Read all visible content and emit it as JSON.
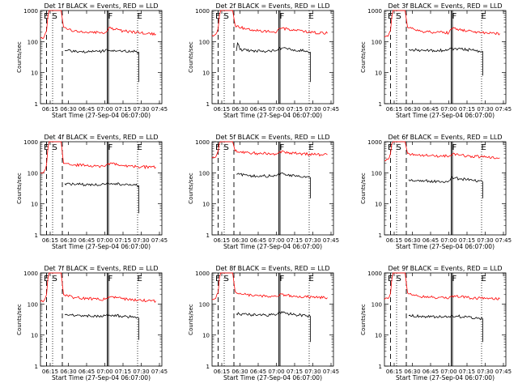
{
  "figure": {
    "background": "#ffffff",
    "colors": {
      "events": "#000000",
      "lld": "#ff0000",
      "axes": "#000000"
    },
    "xlabel": "Start Time (27-Sep-04 06:07:00)",
    "ylabel": "Counts/sec"
  },
  "chart_data": [
    {
      "type": "line",
      "title": "Det 1f BLACK = Events, RED = LLD",
      "xlabel": "Start Time (27-Sep-04 06:07:00)",
      "ylabel": "Counts/sec",
      "xlim": [
        "06:07",
        "07:47"
      ],
      "ylim": [
        1,
        1000
      ],
      "yscale": "log",
      "xticks": [
        "06:15",
        "06:30",
        "06:45",
        "07:00",
        "07:15",
        "07:30",
        "07:45"
      ],
      "yticks": [
        "1",
        "10",
        "100",
        "1000"
      ],
      "markers": [
        {
          "label": "E",
          "t": "06:09"
        },
        {
          "label": "S",
          "t": "06:16"
        },
        {
          "label": "F",
          "t": "07:02"
        },
        {
          "label": "E",
          "t": "07:26"
        }
      ],
      "series": [
        {
          "name": "RED = LLD",
          "color": "#ff0000",
          "x": [
            "06:07",
            "06:10",
            "06:12",
            "06:13",
            "06:14",
            "06:15",
            "06:24",
            "06:26",
            "06:35",
            "06:45",
            "07:00",
            "07:03",
            "07:15",
            "07:30",
            "07:42"
          ],
          "y": [
            130,
            140,
            220,
            600,
            1000,
            1000,
            1000,
            290,
            220,
            200,
            190,
            270,
            220,
            190,
            175
          ]
        },
        {
          "name": "BLACK = Events",
          "color": "#000000",
          "x": [
            "06:27",
            "06:40",
            "06:55",
            "07:00",
            "07:02",
            "07:15",
            "07:25",
            "07:28",
            "07:28"
          ],
          "y": [
            52,
            48,
            48,
            50,
            55,
            50,
            48,
            45,
            5
          ]
        }
      ]
    },
    {
      "type": "line",
      "title": "Det 2f BLACK = Events, RED = LLD",
      "xlabel": "Start Time (27-Sep-04 06:07:00)",
      "ylabel": "Counts/sec",
      "xlim": [
        "06:07",
        "07:47"
      ],
      "ylim": [
        1,
        1000
      ],
      "yscale": "log",
      "xticks": [
        "06:15",
        "06:30",
        "06:45",
        "07:00",
        "07:15",
        "07:30",
        "07:45"
      ],
      "yticks": [
        "1",
        "10",
        "100",
        "1000"
      ],
      "markers": [
        {
          "label": "E",
          "t": "06:09"
        },
        {
          "label": "S",
          "t": "06:16"
        },
        {
          "label": "F",
          "t": "07:02"
        },
        {
          "label": "E",
          "t": "07:26"
        }
      ],
      "series": [
        {
          "name": "RED = LLD",
          "color": "#ff0000",
          "x": [
            "06:07",
            "06:10",
            "06:12",
            "06:13",
            "06:14",
            "06:15",
            "06:24",
            "06:26",
            "06:35",
            "06:45",
            "07:00",
            "07:03",
            "07:15",
            "07:30",
            "07:42"
          ],
          "y": [
            160,
            170,
            260,
            650,
            1000,
            1000,
            1000,
            330,
            250,
            220,
            200,
            270,
            230,
            200,
            185
          ]
        },
        {
          "name": "BLACK = Events",
          "color": "#000000",
          "x": [
            "06:27",
            "06:28",
            "06:30",
            "06:40",
            "06:55",
            "07:00",
            "07:02",
            "07:15",
            "07:25",
            "07:28",
            "07:28"
          ],
          "y": [
            50,
            90,
            55,
            50,
            48,
            52,
            60,
            55,
            50,
            45,
            5
          ]
        }
      ]
    },
    {
      "type": "line",
      "title": "Det 3f BLACK = Events, RED = LLD",
      "xlabel": "Start Time (27-Sep-04 06:07:00)",
      "ylabel": "Counts/sec",
      "xlim": [
        "06:07",
        "07:47"
      ],
      "ylim": [
        1,
        1000
      ],
      "yscale": "log",
      "xticks": [
        "06:15",
        "06:30",
        "06:45",
        "07:00",
        "07:15",
        "07:30",
        "07:45"
      ],
      "yticks": [
        "1",
        "10",
        "100",
        "1000"
      ],
      "markers": [
        {
          "label": "E",
          "t": "06:09"
        },
        {
          "label": "S",
          "t": "06:16"
        },
        {
          "label": "F",
          "t": "07:02"
        },
        {
          "label": "E",
          "t": "07:26"
        }
      ],
      "series": [
        {
          "name": "RED = LLD",
          "color": "#ff0000",
          "x": [
            "06:07",
            "06:10",
            "06:12",
            "06:13",
            "06:14",
            "06:15",
            "06:24",
            "06:26",
            "06:35",
            "06:45",
            "07:00",
            "07:03",
            "07:15",
            "07:30",
            "07:42"
          ],
          "y": [
            140,
            150,
            230,
            600,
            1000,
            1000,
            1000,
            290,
            220,
            200,
            190,
            260,
            220,
            195,
            180
          ]
        },
        {
          "name": "BLACK = Events",
          "color": "#000000",
          "x": [
            "06:27",
            "06:40",
            "06:55",
            "07:00",
            "07:02",
            "07:15",
            "07:25",
            "07:28",
            "07:28"
          ],
          "y": [
            55,
            52,
            52,
            55,
            60,
            55,
            50,
            48,
            8
          ]
        }
      ]
    },
    {
      "type": "line",
      "title": "Det 4f BLACK = Events, RED = LLD",
      "xlabel": "Start Time (27-Sep-04 06:07:00)",
      "ylabel": "Counts/sec",
      "xlim": [
        "06:07",
        "07:47"
      ],
      "ylim": [
        1,
        1000
      ],
      "yscale": "log",
      "xticks": [
        "06:15",
        "06:30",
        "06:45",
        "07:00",
        "07:15",
        "07:30",
        "07:45"
      ],
      "yticks": [
        "1",
        "10",
        "100",
        "1000"
      ],
      "markers": [
        {
          "label": "E",
          "t": "06:09"
        },
        {
          "label": "S",
          "t": "06:16"
        },
        {
          "label": "F",
          "t": "07:02"
        },
        {
          "label": "E",
          "t": "07:26"
        }
      ],
      "series": [
        {
          "name": "RED = LLD",
          "color": "#ff0000",
          "x": [
            "06:07",
            "06:10",
            "06:12",
            "06:13",
            "06:14",
            "06:15",
            "06:24",
            "06:26",
            "06:35",
            "06:45",
            "07:00",
            "07:03",
            "07:15",
            "07:30",
            "07:42"
          ],
          "y": [
            100,
            110,
            180,
            550,
            1000,
            1000,
            1000,
            200,
            180,
            170,
            160,
            200,
            170,
            155,
            150
          ]
        },
        {
          "name": "BLACK = Events",
          "color": "#000000",
          "x": [
            "06:27",
            "06:40",
            "06:55",
            "07:00",
            "07:02",
            "07:15",
            "07:25",
            "07:28",
            "07:28"
          ],
          "y": [
            45,
            42,
            40,
            42,
            48,
            42,
            40,
            38,
            5
          ]
        }
      ]
    },
    {
      "type": "line",
      "title": "Det 5f BLACK = Events, RED = LLD",
      "xlabel": "Start Time (27-Sep-04 06:07:00)",
      "ylabel": "Counts/sec",
      "xlim": [
        "06:07",
        "07:47"
      ],
      "ylim": [
        1,
        1000
      ],
      "yscale": "log",
      "xticks": [
        "06:15",
        "06:30",
        "06:45",
        "07:00",
        "07:15",
        "07:30",
        "07:45"
      ],
      "yticks": [
        "1",
        "10",
        "100",
        "1000"
      ],
      "markers": [
        {
          "label": "E",
          "t": "06:09"
        },
        {
          "label": "S",
          "t": "06:16"
        },
        {
          "label": "F",
          "t": "07:02"
        },
        {
          "label": "E",
          "t": "07:26"
        }
      ],
      "series": [
        {
          "name": "RED = LLD",
          "color": "#ff0000",
          "x": [
            "06:07",
            "06:10",
            "06:12",
            "06:13",
            "06:14",
            "06:15",
            "06:24",
            "06:26",
            "06:35",
            "06:45",
            "07:00",
            "07:03",
            "07:15",
            "07:30",
            "07:42"
          ],
          "y": [
            300,
            320,
            500,
            900,
            1000,
            1000,
            1000,
            500,
            450,
            420,
            400,
            480,
            420,
            390,
            380
          ]
        },
        {
          "name": "BLACK = Events",
          "color": "#000000",
          "x": [
            "06:27",
            "06:40",
            "06:55",
            "07:00",
            "07:02",
            "07:15",
            "07:25",
            "07:28",
            "07:28"
          ],
          "y": [
            90,
            80,
            78,
            80,
            95,
            80,
            75,
            70,
            15
          ]
        }
      ]
    },
    {
      "type": "line",
      "title": "Det 6f BLACK = Events, RED = LLD",
      "xlabel": "Start Time (27-Sep-04 06:07:00)",
      "ylabel": "Counts/sec",
      "xlim": [
        "06:07",
        "07:47"
      ],
      "ylim": [
        1,
        1000
      ],
      "yscale": "log",
      "xticks": [
        "06:15",
        "06:30",
        "06:45",
        "07:00",
        "07:15",
        "07:30",
        "07:45"
      ],
      "yticks": [
        "1",
        "10",
        "100",
        "1000"
      ],
      "markers": [
        {
          "label": "E",
          "t": "06:09"
        },
        {
          "label": "S",
          "t": "06:16"
        },
        {
          "label": "F",
          "t": "07:02"
        },
        {
          "label": "E",
          "t": "07:26"
        }
      ],
      "series": [
        {
          "name": "RED = LLD",
          "color": "#ff0000",
          "x": [
            "06:07",
            "06:10",
            "06:12",
            "06:13",
            "06:14",
            "06:15",
            "06:24",
            "06:26",
            "06:35",
            "06:45",
            "07:00",
            "07:03",
            "07:15",
            "07:30",
            "07:42"
          ],
          "y": [
            250,
            270,
            420,
            850,
            1000,
            1000,
            1000,
            420,
            380,
            360,
            340,
            400,
            350,
            320,
            300
          ]
        },
        {
          "name": "BLACK = Events",
          "color": "#000000",
          "x": [
            "06:27",
            "06:40",
            "06:55",
            "07:00",
            "07:02",
            "07:15",
            "07:25",
            "07:28",
            "07:28"
          ],
          "y": [
            60,
            55,
            52,
            55,
            70,
            60,
            55,
            50,
            15
          ]
        }
      ]
    },
    {
      "type": "line",
      "title": "Det 7f BLACK = Events, RED = LLD",
      "xlabel": "Start Time (27-Sep-04 06:07:00)",
      "ylabel": "Counts/sec",
      "xlim": [
        "06:07",
        "07:47"
      ],
      "ylim": [
        1,
        1000
      ],
      "yscale": "log",
      "xticks": [
        "06:15",
        "06:30",
        "06:45",
        "07:00",
        "07:15",
        "07:30",
        "07:45"
      ],
      "yticks": [
        "1",
        "10",
        "100",
        "1000"
      ],
      "markers": [
        {
          "label": "E",
          "t": "06:09"
        },
        {
          "label": "S",
          "t": "06:16"
        },
        {
          "label": "F",
          "t": "07:02"
        },
        {
          "label": "E",
          "t": "07:26"
        }
      ],
      "series": [
        {
          "name": "RED = LLD",
          "color": "#ff0000",
          "x": [
            "06:07",
            "06:10",
            "06:12",
            "06:13",
            "06:14",
            "06:15",
            "06:24",
            "06:26",
            "06:35",
            "06:45",
            "07:00",
            "07:03",
            "07:15",
            "07:30",
            "07:42"
          ],
          "y": [
            120,
            130,
            200,
            600,
            1000,
            1000,
            1000,
            200,
            160,
            150,
            140,
            170,
            145,
            130,
            125
          ]
        },
        {
          "name": "BLACK = Events",
          "color": "#000000",
          "x": [
            "06:27",
            "06:40",
            "06:55",
            "07:00",
            "07:02",
            "07:15",
            "07:25",
            "07:28",
            "07:28"
          ],
          "y": [
            45,
            42,
            40,
            42,
            46,
            40,
            38,
            35,
            7
          ]
        }
      ]
    },
    {
      "type": "line",
      "title": "Det 8f BLACK = Events, RED = LLD",
      "xlabel": "Start Time (27-Sep-04 06:07:00)",
      "ylabel": "Counts/sec",
      "xlim": [
        "06:07",
        "07:47"
      ],
      "ylim": [
        1,
        1000
      ],
      "yscale": "log",
      "xticks": [
        "06:15",
        "06:30",
        "06:45",
        "07:00",
        "07:15",
        "07:30",
        "07:45"
      ],
      "yticks": [
        "1",
        "10",
        "100",
        "1000"
      ],
      "markers": [
        {
          "label": "E",
          "t": "06:09"
        },
        {
          "label": "S",
          "t": "06:16"
        },
        {
          "label": "F",
          "t": "07:02"
        },
        {
          "label": "E",
          "t": "07:26"
        }
      ],
      "series": [
        {
          "name": "RED = LLD",
          "color": "#ff0000",
          "x": [
            "06:07",
            "06:10",
            "06:12",
            "06:13",
            "06:14",
            "06:15",
            "06:24",
            "06:26",
            "06:35",
            "06:45",
            "07:00",
            "07:03",
            "07:15",
            "07:30",
            "07:42"
          ],
          "y": [
            140,
            150,
            230,
            650,
            1000,
            1000,
            1000,
            250,
            200,
            185,
            175,
            210,
            180,
            165,
            160
          ]
        },
        {
          "name": "BLACK = Events",
          "color": "#000000",
          "x": [
            "06:27",
            "06:40",
            "06:55",
            "07:00",
            "07:02",
            "07:15",
            "07:25",
            "07:28",
            "07:28"
          ],
          "y": [
            48,
            45,
            44,
            46,
            55,
            45,
            42,
            40,
            6
          ]
        }
      ]
    },
    {
      "type": "line",
      "title": "Det 9f BLACK = Events, RED = LLD",
      "xlabel": "Start Time (27-Sep-04 06:07:00)",
      "ylabel": "Counts/sec",
      "xlim": [
        "06:07",
        "07:47"
      ],
      "ylim": [
        1,
        1000
      ],
      "yscale": "log",
      "xticks": [
        "06:15",
        "06:30",
        "06:45",
        "07:00",
        "07:15",
        "07:30",
        "07:45"
      ],
      "yticks": [
        "1",
        "10",
        "100",
        "1000"
      ],
      "markers": [
        {
          "label": "E",
          "t": "06:09"
        },
        {
          "label": "S",
          "t": "06:16"
        },
        {
          "label": "F",
          "t": "07:02"
        },
        {
          "label": "E",
          "t": "07:26"
        }
      ],
      "series": [
        {
          "name": "RED = LLD",
          "color": "#ff0000",
          "x": [
            "06:07",
            "06:10",
            "06:12",
            "06:13",
            "06:14",
            "06:15",
            "06:24",
            "06:26",
            "06:35",
            "06:45",
            "07:00",
            "07:03",
            "07:15",
            "07:30",
            "07:42"
          ],
          "y": [
            140,
            150,
            220,
            600,
            1000,
            1000,
            1000,
            230,
            180,
            165,
            155,
            185,
            160,
            150,
            145
          ]
        },
        {
          "name": "BLACK = Events",
          "color": "#000000",
          "x": [
            "06:27",
            "06:40",
            "06:55",
            "07:00",
            "07:02",
            "07:15",
            "07:25",
            "07:28",
            "07:28"
          ],
          "y": [
            42,
            40,
            38,
            40,
            42,
            38,
            35,
            33,
            6
          ]
        }
      ]
    }
  ]
}
